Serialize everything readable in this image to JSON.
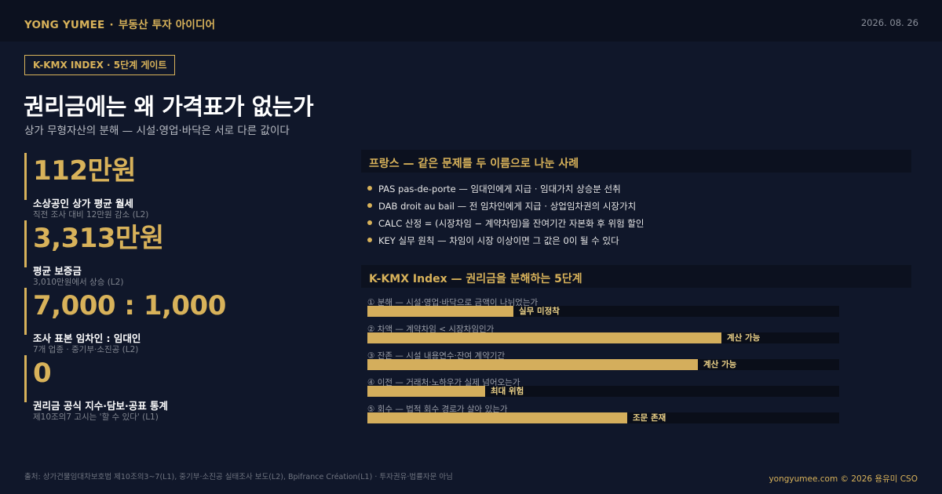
{
  "header": {
    "brand": "YONG YUMEE",
    "separator": "·",
    "section": "부동산 투자 아이디어",
    "date": "2026. 08. 26"
  },
  "tag": "K-KMX INDEX · 5단계 게이트",
  "title": "권리금에는 왜 가격표가 없는가",
  "subtitle": "상가 무형자산의 분해 — 시설·영업·바닥은 서로 다른 값이다",
  "stats": [
    {
      "value": "112만원",
      "label": "소상공인 상가 평균 월세",
      "note": "직전 조사 대비 12만원 감소 (L2)"
    },
    {
      "value": "3,313만원",
      "label": "평균 보증금",
      "note": "3,010만원에서 상승 (L2)"
    },
    {
      "value": "7,000 : 1,000",
      "label": "조사 표본 임차인 : 임대인",
      "note": "7개 업종 · 중기부·소진공 (L2)"
    },
    {
      "value": "0",
      "label": "권리금 공식 지수·담보·공표 통계",
      "note": "제10조의7 고시는 '할 수 있다' (L1)"
    }
  ],
  "france": {
    "heading": "프랑스 — 같은 문제를 두 이름으로 나눈 사례",
    "bullets": [
      "PAS  pas-de-porte — 임대인에게 지급 · 임대가치 상승분 선취",
      "DAB  droit au bail — 전 임차인에게 지급 · 상업임차권의 시장가치",
      "CALC  산정 = (시장차임 − 계약차임)을 잔여기간 자본화 후 위험 할인",
      "KEY  실무 원칙 — 차임이 시장 이상이면 그 값은 0이 될 수 있다"
    ]
  },
  "index": {
    "heading": "K-KMX Index — 권리금을 분해하는 5단계",
    "gates": [
      {
        "label": "① 분해 — 시설·영업·바닥으로 금액이 나뉘었는가",
        "level": 0.31,
        "state": "실무 미정착"
      },
      {
        "label": "② 차액 — 계약차임 < 시장차임인가",
        "level": 0.75,
        "state": "계산 가능"
      },
      {
        "label": "③ 잔존 — 시설 내용연수·잔여 계약기간",
        "level": 0.7,
        "state": "계산 가능"
      },
      {
        "label": "④ 이전 — 거래처·노하우가 실제 넘어오는가",
        "level": 0.25,
        "state": "최대 위험"
      },
      {
        "label": "⑤ 회수 — 법적 회수 경로가 살아 있는가",
        "level": 0.55,
        "state": "조문 존재"
      }
    ]
  },
  "footer": {
    "source": "출처: 상가건물임대차보호법 제10조의3~7(L1), 중기부·소진공 실태조사 보도(L2), Bpifrance Création(L1) · 투자권유·법률자문 아님",
    "credit": "yongyumee.com © 2026 용유미 CSO"
  },
  "colors": {
    "background": "#10172a",
    "accent": "#d8b25a",
    "bar": "#d4ae5c",
    "track": "#0a0e19"
  }
}
